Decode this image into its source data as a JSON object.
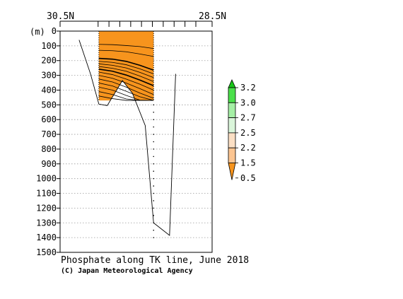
{
  "chart_data": {
    "type": "area",
    "title": "Phosphate along TK line, June 2018",
    "credit": "(C) Japan Meteorological Agency",
    "x_axis": {
      "left_label": "30.5N",
      "right_label": "28.5N",
      "range": [
        30.5,
        28.5
      ]
    },
    "y_axis": {
      "unit_label": "(m)",
      "range": [
        0,
        1500
      ],
      "inverted": true,
      "ticks": [
        0,
        100,
        200,
        300,
        400,
        500,
        600,
        700,
        800,
        900,
        1000,
        1100,
        1200,
        1300,
        1400,
        1500
      ],
      "grid": true
    },
    "station_latitudes": [
      30.0,
      29.857,
      29.714,
      29.571,
      29.429,
      29.286,
      29.143,
      29.0,
      28.857,
      28.714
    ],
    "bottom_profile": {
      "lat": [
        30.25,
        30.1,
        29.99,
        29.88,
        29.68,
        29.55,
        29.38,
        29.27,
        29.06,
        28.98
      ],
      "depth": [
        60,
        290,
        495,
        505,
        335,
        420,
        640,
        1300,
        1385,
        290
      ]
    },
    "shaded_region": {
      "lat_from": 29.99,
      "lat_to": 29.27,
      "depth_to": 470,
      "color": "#f7941d"
    },
    "contours": [
      {
        "depth": [
          90,
          92,
          98,
          105,
          118
        ],
        "bold": false
      },
      {
        "depth": [
          130,
          133,
          140,
          155,
          172
        ],
        "bold": false
      },
      {
        "depth": [
          185,
          190,
          205,
          232,
          265
        ],
        "bold": true
      },
      {
        "depth": [
          205,
          212,
          228,
          256,
          290
        ],
        "bold": false
      },
      {
        "depth": [
          222,
          232,
          250,
          280,
          315
        ],
        "bold": false
      },
      {
        "depth": [
          240,
          252,
          272,
          305,
          342
        ],
        "bold": false
      },
      {
        "depth": [
          258,
          272,
          298,
          332,
          370
        ],
        "bold": true
      },
      {
        "depth": [
          278,
          295,
          325,
          360,
          400
        ],
        "bold": false
      },
      {
        "depth": [
          300,
          320,
          352,
          390,
          430
        ],
        "bold": false
      },
      {
        "depth": [
          325,
          345,
          380,
          420,
          455
        ],
        "bold": false
      },
      {
        "depth": [
          352,
          372,
          408,
          445,
          470
        ],
        "bold": false
      },
      {
        "depth": [
          380,
          400,
          436,
          468,
          470
        ],
        "bold": false
      },
      {
        "depth": [
          410,
          430,
          460,
          470,
          470
        ],
        "bold": false
      },
      {
        "depth": [
          440,
          458,
          470,
          470,
          470
        ],
        "bold": false
      }
    ],
    "contour_lat": [
      29.99,
      29.81,
      29.63,
      29.45,
      29.27
    ],
    "legend": {
      "labels": [
        "3.2",
        "3.0",
        "2.7",
        "2.5",
        "2.2",
        "1.5",
        "0.5"
      ],
      "colors": [
        "#19c719",
        "#4be04b",
        "#a5efa5",
        "#daf5da",
        "#fbdfc4",
        "#fcc591",
        "#f7941d"
      ]
    }
  }
}
